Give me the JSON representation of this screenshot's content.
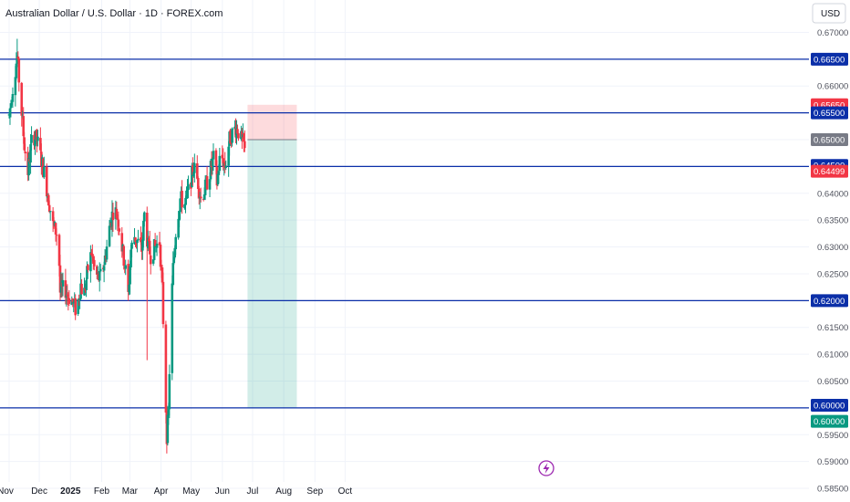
{
  "header": {
    "title": "Australian Dollar / U.S. Dollar · 1D · FOREX.com",
    "currency": "USD"
  },
  "chart_data": {
    "type": "candlestick",
    "instrument": "AUDUSD",
    "timeframe": "1D",
    "ylim": [
      0.5845,
      0.6745
    ],
    "y_ticks": [
      "0.67000",
      "0.66000",
      "0.65500",
      "0.64500",
      "0.64000",
      "0.63500",
      "0.63000",
      "0.62500",
      "0.61500",
      "0.61000",
      "0.60500",
      "0.59500",
      "0.59000",
      "0.58500"
    ],
    "x_ticks": [
      "Nov",
      "Dec",
      "2025",
      "Feb",
      "Mar",
      "Apr",
      "May",
      "Jun",
      "Jul",
      "Aug",
      "Sep",
      "Oct"
    ],
    "horizontal_levels": [
      0.665,
      0.655,
      0.645,
      0.62,
      0.6
    ],
    "price_tags": [
      {
        "label": "0.66500",
        "color": "#0b2fa8"
      },
      {
        "label": "0.65650",
        "color": "#f23645"
      },
      {
        "label": "0.65500",
        "color": "#0b2fa8"
      },
      {
        "label": "0.65000",
        "color": "#787b86"
      },
      {
        "label": "0.64500",
        "color": "#0b2fa8"
      },
      {
        "label": "0.64499",
        "color": "#f23645"
      },
      {
        "label": "0.62000",
        "color": "#0b2fa8"
      },
      {
        "label": "0.60000",
        "color": "#0b2fa8"
      },
      {
        "label": "0.60000",
        "color": "#089981"
      }
    ],
    "position": {
      "type": "short",
      "entry": 0.65,
      "stop": 0.6565,
      "target": 0.6,
      "start": "Jun 26",
      "end": "Aug 14"
    },
    "candles_summary": {
      "open_start": 0.6545,
      "high_max": 0.6688,
      "low_min": 0.5915,
      "last_close": 0.64499
    },
    "colors": {
      "up": "#089981",
      "down": "#f23645",
      "level": "#0b2fa8",
      "stop_zone": "#f23645",
      "target_zone": "#089981"
    }
  }
}
